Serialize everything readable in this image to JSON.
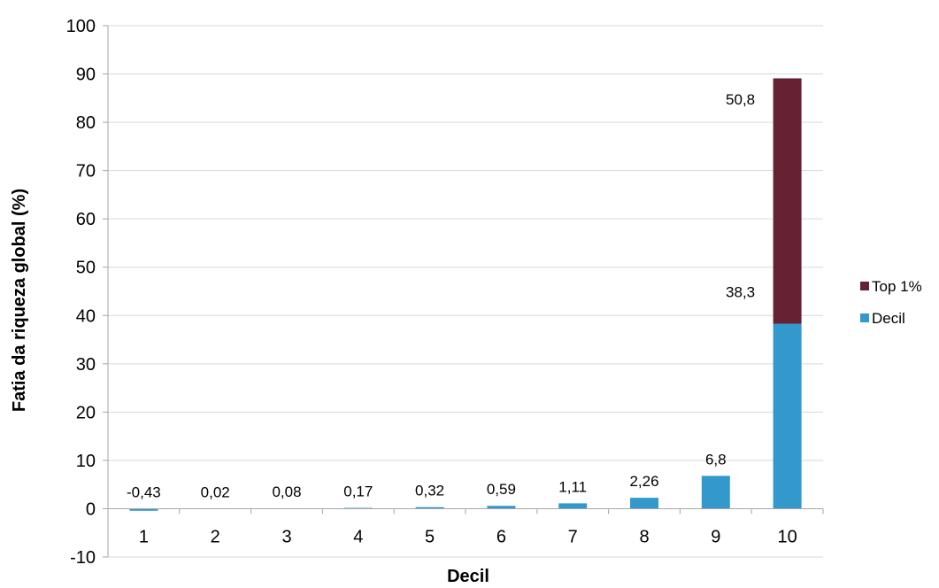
{
  "chart_data": {
    "type": "bar",
    "stacked": true,
    "categories": [
      "1",
      "2",
      "3",
      "4",
      "5",
      "6",
      "7",
      "8",
      "9",
      "10"
    ],
    "series": [
      {
        "name": "Decil",
        "color": "#3399cc",
        "values": [
          -0.43,
          0.02,
          0.08,
          0.17,
          0.32,
          0.59,
          1.11,
          2.26,
          6.8,
          38.3
        ],
        "labels": [
          "-0,43",
          "0,02",
          "0,08",
          "0,17",
          "0,32",
          "0,59",
          "1,11",
          "2,26",
          "6,8",
          "38,3"
        ]
      },
      {
        "name": "Top 1%",
        "color": "#662233",
        "values": [
          null,
          null,
          null,
          null,
          null,
          null,
          null,
          null,
          null,
          50.8
        ],
        "labels": [
          "",
          "",
          "",
          "",
          "",
          "",
          "",
          "",
          "",
          "50,8"
        ]
      }
    ],
    "title": "",
    "xlabel": "Decil",
    "ylabel": "Fatia da riqueza global (%)",
    "ylim": [
      -10,
      100
    ],
    "yticks": [
      "-10",
      "0",
      "10",
      "20",
      "30",
      "40",
      "50",
      "60",
      "70",
      "80",
      "90",
      "100"
    ],
    "grid": true,
    "legend_position": "right",
    "legend_order": [
      "Top 1%",
      "Decil"
    ]
  }
}
